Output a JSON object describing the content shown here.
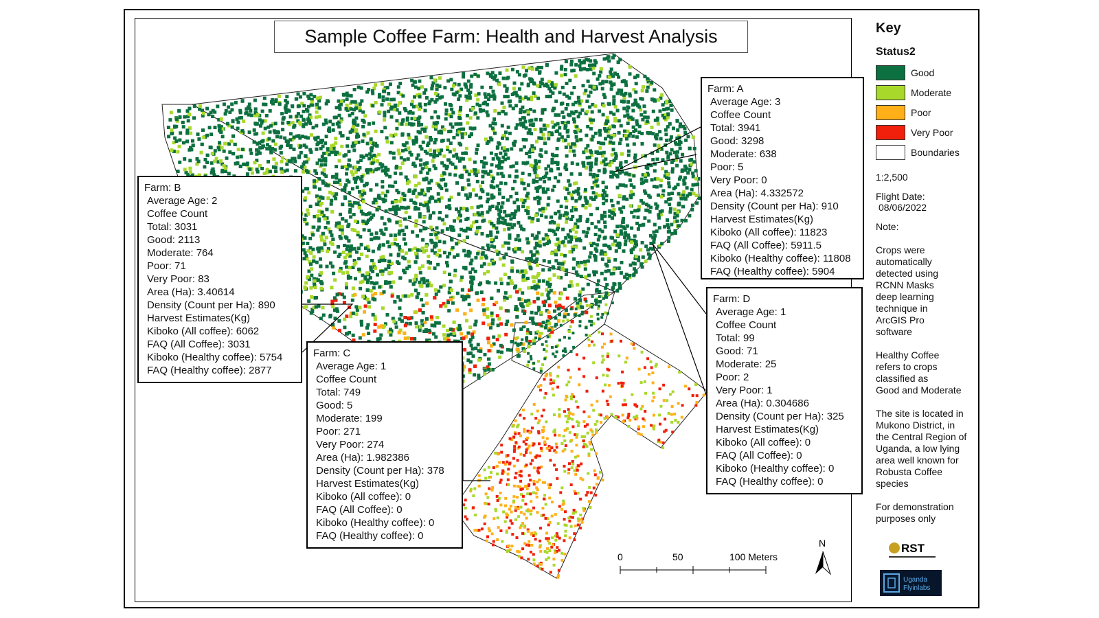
{
  "title": "Sample Coffee Farm: Health and Harvest Analysis",
  "key": {
    "title": "Key",
    "subtitle": "Status2",
    "items": [
      {
        "label": "Good",
        "color": "#0d7040"
      },
      {
        "label": "Moderate",
        "color": "#a8d82a"
      },
      {
        "label": "Poor",
        "color": "#ffb019"
      },
      {
        "label": "Very Poor",
        "color": "#f0200c"
      },
      {
        "label": "Boundaries",
        "color": "#ffffff"
      }
    ],
    "scale": "1:2,500",
    "flight_date_label": "Flight Date:",
    "flight_date": "08/06/2022",
    "note_label": "Note:",
    "note1": [
      "Crops were",
      "automatically",
      "detected using",
      "RCNN Masks",
      "deep learning",
      "technique in",
      "ArcGIS Pro",
      "software"
    ],
    "note2": [
      "Healthy Coffee",
      "refers to crops",
      "classified as",
      "Good and Moderate"
    ],
    "note3": [
      "The site is located in",
      "Mukono District, in",
      "the Central Region of",
      "Uganda, a low lying",
      "area well known for",
      "Robusta Coffee",
      "species"
    ],
    "note4": [
      "For demonstration",
      "purposes only"
    ],
    "logo_rst": "RST",
    "logo_uf": [
      "Uganda",
      "Flyinlabs"
    ]
  },
  "scalebar": {
    "labels": [
      "0",
      "50",
      "100 Meters"
    ]
  },
  "north_label": "N",
  "farms": {
    "A": {
      "name": "Farm: A",
      "age": "Average Age: 3",
      "count_label": "Coffee Count",
      "total": "Total: 3941",
      "good": "Good: 3298",
      "moderate": "Moderate: 638",
      "poor": "Poor: 5",
      "verypoor": "Very Poor: 0",
      "area": "Area (Ha): 4.332572",
      "density": "Density (Count per Ha): 910",
      "harvest": "Harvest Estimates(Kg)",
      "kiboko_all": "Kiboko (All coffee): 11823",
      "faq_all": "FAQ (All Coffee): 5911.5",
      "kiboko_healthy": "Kiboko (Healthy coffee): 11808",
      "faq_healthy": "FAQ (Healthy coffee): 5904"
    },
    "B": {
      "name": "Farm: B",
      "age": "Average Age: 2",
      "count_label": "Coffee Count",
      "total": "Total: 3031",
      "good": "Good: 2113",
      "moderate": "Moderate: 764",
      "poor": "Poor: 71",
      "verypoor": "Very Poor: 83",
      "area": "Area (Ha): 3.40614",
      "density": "Density (Count per Ha): 890",
      "harvest": "Harvest Estimates(Kg)",
      "kiboko_all": "Kiboko (All coffee): 6062",
      "faq_all": "FAQ (All Coffee): 3031",
      "kiboko_healthy": "Kiboko (Healthy coffee): 5754",
      "faq_healthy": "FAQ (Healthy coffee): 2877"
    },
    "C": {
      "name": "Farm: C",
      "age": "Average Age: 1",
      "count_label": "Coffee Count",
      "total": "Total: 749",
      "good": "Good: 5",
      "moderate": "Moderate: 199",
      "poor": "Poor: 271",
      "verypoor": "Very Poor: 274",
      "area": "Area (Ha): 1.982386",
      "density": "Density (Count per Ha): 378",
      "harvest": "Harvest Estimates(Kg)",
      "kiboko_all": "Kiboko (All coffee): 0",
      "faq_all": "FAQ (All Coffee): 0",
      "kiboko_healthy": "Kiboko (Healthy coffee): 0",
      "faq_healthy": "FAQ (Healthy coffee): 0"
    },
    "D": {
      "name": "Farm: D",
      "age": "Average Age: 1",
      "count_label": "Coffee Count",
      "total": "Total: 99",
      "good": "Good: 71",
      "moderate": "Moderate: 25",
      "poor": "Poor: 2",
      "verypoor": "Very Poor: 1",
      "area": "Area (Ha): 0.304686",
      "density": "Density (Count per Ha): 325",
      "harvest": "Harvest Estimates(Kg)",
      "kiboko_all": "Kiboko (All coffee): 0",
      "faq_all": "FAQ (All Coffee): 0",
      "kiboko_healthy": "Kiboko (Healthy coffee): 0",
      "faq_healthy": "FAQ (Healthy coffee): 0"
    }
  }
}
